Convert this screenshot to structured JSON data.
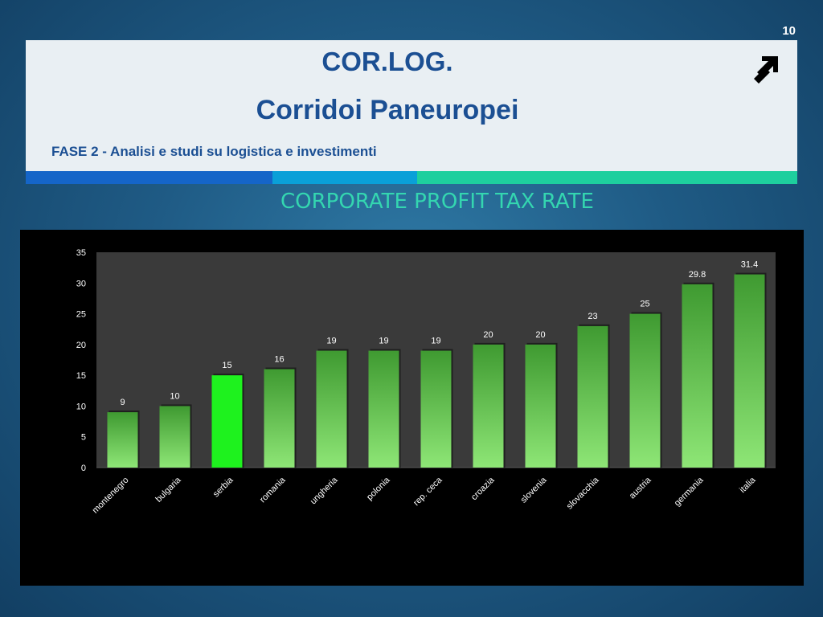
{
  "page": {
    "slide_number": "10",
    "title_line1": "COR.LOG.",
    "title_line2": "Corridoi Paneuropei",
    "subtitle": "FASE 2 - Analisi e studi su logistica e investimenti",
    "chart_heading": "CORPORATE PROFIT TAX RATE",
    "nav_icon": "arrow-up-right-icon"
  },
  "colors": {
    "title_blue": "#1b4f93",
    "heading_teal": "#34d6b0",
    "strip": [
      "#1565c8",
      "#0aa0d8",
      "#1ecf9e"
    ],
    "bar_default_top": "#3f9a31",
    "bar_default_bottom": "#8ee676",
    "bar_highlight": "#1ef21e",
    "plot_bg": "#3a3a3a"
  },
  "chart_data": {
    "type": "bar",
    "categories": [
      "montenegro",
      "bulgaria",
      "serbia",
      "romania",
      "ungheria",
      "polonia",
      "rep. ceca",
      "croazia",
      "slovenia",
      "slovacchia",
      "austria",
      "germania",
      "italia"
    ],
    "series": [
      {
        "values": [
          9,
          10,
          15,
          16,
          19,
          19,
          19,
          20,
          20,
          23,
          25,
          29.8,
          31.4
        ]
      }
    ],
    "data_labels": [
      "9",
      "10",
      "15",
      "16",
      "19",
      "19",
      "19",
      "20",
      "20",
      "23",
      "25",
      "29.8",
      "31.4"
    ],
    "highlight_category": "serbia",
    "y_ticks": [
      "0",
      "5",
      "10",
      "15",
      "20",
      "25",
      "30",
      "35"
    ],
    "ylim": [
      0,
      35
    ],
    "xlabel": "",
    "ylabel": "",
    "grid": false,
    "legend": "none"
  }
}
